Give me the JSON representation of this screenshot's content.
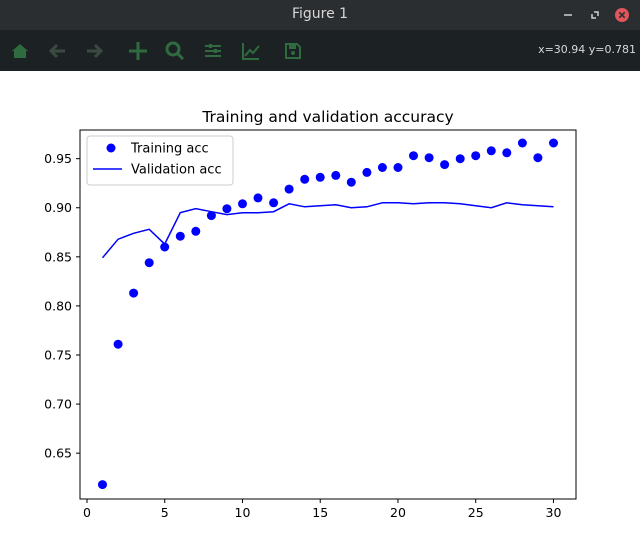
{
  "window": {
    "title": "Figure 1",
    "controls": [
      "minimize-icon",
      "restore-icon",
      "close-icon"
    ],
    "close_color": "#e0565b"
  },
  "toolbar": {
    "tools": [
      "home-icon",
      "back-icon",
      "forward-icon",
      "pan-icon",
      "zoom-icon",
      "subplots-icon",
      "edit-axes-icon",
      "save-icon"
    ],
    "icon_color": "#2e6b3e",
    "coords": "x=30.94 y=0.781"
  },
  "chart_data": {
    "type": "line",
    "title": "Training and validation accuracy",
    "xlabel": "",
    "ylabel": "",
    "xlim": [
      -0.45,
      31.45
    ],
    "ylim": [
      0.6033,
      0.9792
    ],
    "xticks": [
      0,
      5,
      10,
      15,
      20,
      25,
      30
    ],
    "yticks": [
      0.65,
      0.7,
      0.75,
      0.8,
      0.85,
      0.9,
      0.95
    ],
    "xtick_labels": [
      "0",
      "5",
      "10",
      "15",
      "20",
      "25",
      "30"
    ],
    "ytick_labels": [
      "0.65",
      "0.70",
      "0.75",
      "0.80",
      "0.85",
      "0.90",
      "0.95"
    ],
    "grid": false,
    "legend_position": "upper left",
    "series_color": "#0000ff",
    "series": [
      {
        "name": "Training acc",
        "style": "points",
        "x": [
          1,
          2,
          3,
          4,
          5,
          6,
          7,
          8,
          9,
          10,
          11,
          12,
          13,
          14,
          15,
          16,
          17,
          18,
          19,
          20,
          21,
          22,
          23,
          24,
          25,
          26,
          27,
          28,
          29,
          30
        ],
        "values": [
          0.618,
          0.761,
          0.813,
          0.844,
          0.86,
          0.871,
          0.876,
          0.892,
          0.899,
          0.904,
          0.91,
          0.905,
          0.919,
          0.929,
          0.931,
          0.933,
          0.926,
          0.936,
          0.941,
          0.941,
          0.953,
          0.951,
          0.944,
          0.95,
          0.953,
          0.958,
          0.956,
          0.966,
          0.951,
          0.966
        ]
      },
      {
        "name": "Validation acc",
        "style": "line",
        "x": [
          1,
          2,
          3,
          4,
          5,
          6,
          7,
          8,
          9,
          10,
          11,
          12,
          13,
          14,
          15,
          16,
          17,
          18,
          19,
          20,
          21,
          22,
          23,
          24,
          25,
          26,
          27,
          28,
          29,
          30
        ],
        "values": [
          0.849,
          0.868,
          0.874,
          0.878,
          0.863,
          0.895,
          0.899,
          0.896,
          0.893,
          0.895,
          0.895,
          0.896,
          0.904,
          0.901,
          0.902,
          0.903,
          0.9,
          0.901,
          0.905,
          0.905,
          0.904,
          0.905,
          0.905,
          0.904,
          0.902,
          0.9,
          0.905,
          0.903,
          0.902,
          0.901
        ]
      }
    ]
  }
}
